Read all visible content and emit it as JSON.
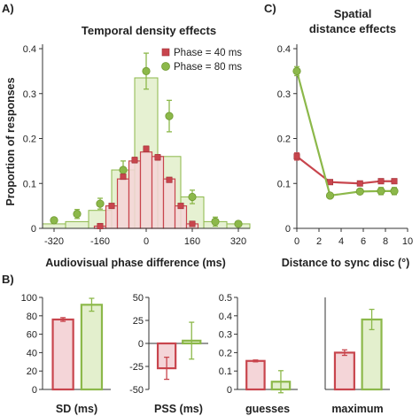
{
  "panel_labels": [
    "A)",
    "B)",
    "C)"
  ],
  "colors": {
    "red": "#c8454d",
    "red_fill": "#f4d5d8",
    "green": "#8cb84a",
    "green_fill": "#e3efcd",
    "axis": "#333333"
  },
  "chart_data": [
    {
      "id": "A",
      "type": "bar+line",
      "title": "Temporal density effects",
      "xlabel": "Audiovisual phase difference (ms)",
      "ylabel": "Proportion of responses",
      "xlim": [
        -360,
        360
      ],
      "ylim": [
        0,
        0.4
      ],
      "xticks": [
        "-320",
        "-160",
        "0",
        "160",
        "320"
      ],
      "yticks": [
        "0",
        "0.1",
        "0.2",
        "0.3",
        "0.4"
      ],
      "legend_position": "top-right",
      "series": [
        {
          "name": "Phase = 40 ms",
          "color": "red",
          "bars": {
            "x": [
              -160,
              -120,
              -80,
              -40,
              0,
              40,
              80,
              120,
              160
            ],
            "values": [
              0.005,
              0.05,
              0.11,
              0.15,
              0.17,
              0.16,
              0.11,
              0.05,
              0.01
            ]
          },
          "points": {
            "x": [
              -160,
              -120,
              -80,
              -40,
              0,
              40,
              80,
              120,
              160
            ],
            "values": [
              0.005,
              0.05,
              0.115,
              0.152,
              0.177,
              0.158,
              0.108,
              0.05,
              0.01
            ],
            "errors": [
              0.003,
              0.004,
              0.005,
              0.006,
              0.006,
              0.006,
              0.005,
              0.005,
              0.003
            ]
          }
        },
        {
          "name": "Phase = 80 ms",
          "color": "green",
          "bars": {
            "x": [
              -320,
              -240,
              -160,
              -80,
              0,
              80,
              160,
              240,
              320
            ],
            "values": [
              0.01,
              0.015,
              0.04,
              0.13,
              0.335,
              0.16,
              0.07,
              0.015,
              0.01
            ]
          },
          "points": {
            "x": [
              -320,
              -240,
              -160,
              -80,
              0,
              80,
              160,
              240,
              320
            ],
            "values": [
              0.018,
              0.032,
              0.055,
              0.13,
              0.35,
              0.25,
              0.07,
              0.015,
              0.01
            ],
            "errors": [
              0.008,
              0.01,
              0.012,
              0.02,
              0.04,
              0.035,
              0.015,
              0.01,
              0.008
            ]
          }
        }
      ]
    },
    {
      "id": "C",
      "type": "line",
      "title_lines": [
        "Spatial",
        "distance effects"
      ],
      "xlabel": "Distance to sync disc (°)",
      "xlim": [
        0,
        10
      ],
      "ylim": [
        0,
        0.4
      ],
      "xticks": [
        "0",
        "2",
        "4",
        "6",
        "8",
        "10"
      ],
      "yticks": [
        "0",
        "0.1",
        "0.2",
        "0.3",
        "0.4"
      ],
      "series": [
        {
          "color": "red",
          "x": [
            0,
            3,
            5.7,
            7.6,
            8.8
          ],
          "values": [
            0.16,
            0.103,
            0.1,
            0.105,
            0.105
          ],
          "errors": [
            0.008,
            0.005,
            0.005,
            0.005,
            0.005
          ]
        },
        {
          "color": "green",
          "x": [
            0,
            3,
            5.7,
            7.6,
            8.8
          ],
          "values": [
            0.35,
            0.073,
            0.082,
            0.083,
            0.083
          ],
          "errors": [
            0.01,
            0.005,
            0.005,
            0.008,
            0.008
          ]
        }
      ]
    },
    {
      "id": "B1",
      "type": "bar",
      "xlabel": "SD (ms)",
      "ylim": [
        0,
        100
      ],
      "yticks": [
        "0",
        "20",
        "40",
        "60",
        "80",
        "100"
      ],
      "categories": [
        "Phase = 40 ms",
        "Phase = 80 ms"
      ],
      "values": [
        76,
        92
      ],
      "errors": [
        2,
        7
      ]
    },
    {
      "id": "B2",
      "type": "bar",
      "xlabel": "PSS (ms)",
      "ylim": [
        -50,
        50
      ],
      "yticks": [
        "-50",
        "-25",
        "0",
        "25",
        "50"
      ],
      "categories": [
        "Phase = 40 ms",
        "Phase = 80 ms"
      ],
      "values": [
        -27,
        3
      ],
      "errors": [
        12,
        20
      ]
    },
    {
      "id": "B3",
      "type": "bar",
      "xlabel": "guesses",
      "ylim": [
        0,
        0.5
      ],
      "yticks": [
        "0",
        "0.1",
        "0.2",
        "0.3",
        "0.4",
        "0.5"
      ],
      "categories": [
        "Phase = 40 ms",
        "Phase = 80 ms"
      ],
      "values": [
        0.155,
        0.042
      ],
      "errors": [
        0.005,
        0.06
      ]
    },
    {
      "id": "B4",
      "type": "bar",
      "xlabel": "maximum",
      "ylim": [
        0,
        0.5
      ],
      "yticks": [],
      "categories": [
        "Phase = 40 ms",
        "Phase = 80 ms"
      ],
      "values": [
        0.2,
        0.38
      ],
      "errors": [
        0.015,
        0.055
      ]
    }
  ]
}
